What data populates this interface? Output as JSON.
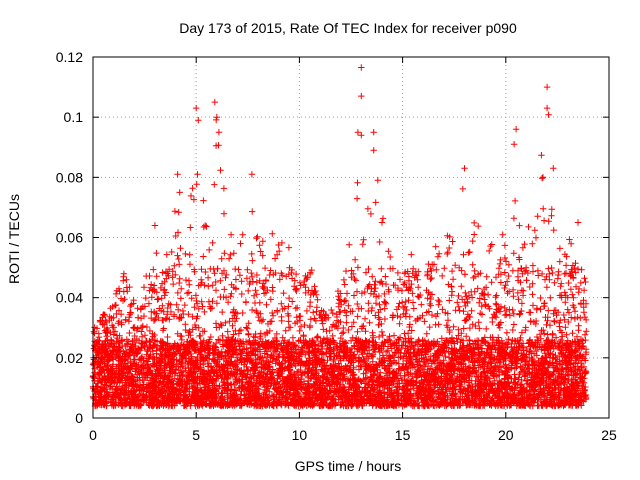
{
  "chart_data": {
    "type": "scatter",
    "title": "Day 173 of 2015, Rate Of TEC Index for receiver p090",
    "xlabel": "GPS time / hours",
    "ylabel": "ROTI / TECUs",
    "xlim": [
      0,
      25
    ],
    "ylim": [
      0,
      0.12
    ],
    "x_ticks": [
      0,
      5,
      10,
      15,
      20,
      25
    ],
    "y_ticks": [
      0,
      0.02,
      0.04,
      0.06,
      0.08,
      0.1,
      0.12
    ],
    "x_tick_labels": [
      "0",
      "5",
      "10",
      "15",
      "20",
      "25"
    ],
    "y_tick_labels": [
      "0",
      "0.02",
      "0.04",
      "0.06",
      "0.08",
      "0.1",
      "0.12"
    ],
    "grid": true,
    "marker": "+",
    "color": "#ff0000",
    "x_data_range": [
      0,
      23.9
    ],
    "envelope": [
      [
        0.0,
        0.03
      ],
      [
        0.5,
        0.035
      ],
      [
        1.0,
        0.04
      ],
      [
        1.5,
        0.048
      ],
      [
        2.0,
        0.04
      ],
      [
        2.5,
        0.045
      ],
      [
        3.0,
        0.062
      ],
      [
        3.5,
        0.05
      ],
      [
        4.0,
        0.08
      ],
      [
        4.5,
        0.06
      ],
      [
        5.0,
        0.103
      ],
      [
        5.5,
        0.068
      ],
      [
        6.0,
        0.105
      ],
      [
        6.5,
        0.065
      ],
      [
        7.0,
        0.06
      ],
      [
        7.5,
        0.08
      ],
      [
        8.0,
        0.06
      ],
      [
        8.5,
        0.067
      ],
      [
        9.0,
        0.062
      ],
      [
        9.5,
        0.062
      ],
      [
        10.0,
        0.05
      ],
      [
        10.5,
        0.052
      ],
      [
        11.0,
        0.038
      ],
      [
        11.5,
        0.035
      ],
      [
        12.0,
        0.045
      ],
      [
        12.5,
        0.068
      ],
      [
        13.0,
        0.116
      ],
      [
        13.5,
        0.095
      ],
      [
        14.0,
        0.079
      ],
      [
        14.5,
        0.05
      ],
      [
        15.0,
        0.048
      ],
      [
        15.5,
        0.056
      ],
      [
        16.0,
        0.045
      ],
      [
        16.5,
        0.06
      ],
      [
        17.0,
        0.062
      ],
      [
        17.5,
        0.06
      ],
      [
        18.0,
        0.083
      ],
      [
        18.5,
        0.066
      ],
      [
        19.0,
        0.064
      ],
      [
        19.5,
        0.055
      ],
      [
        20.0,
        0.064
      ],
      [
        20.5,
        0.095
      ],
      [
        21.0,
        0.065
      ],
      [
        21.5,
        0.07
      ],
      [
        22.0,
        0.11
      ],
      [
        22.5,
        0.06
      ],
      [
        23.0,
        0.06
      ],
      [
        23.5,
        0.065
      ],
      [
        23.9,
        0.045
      ]
    ],
    "peaks": [
      [
        13.0,
        0.1165
      ],
      [
        13.0,
        0.107
      ],
      [
        13.0,
        0.094
      ],
      [
        13.6,
        0.095
      ],
      [
        13.6,
        0.089
      ],
      [
        13.8,
        0.079
      ],
      [
        14.0,
        0.065
      ],
      [
        5.0,
        0.103
      ],
      [
        5.1,
        0.099
      ],
      [
        5.9,
        0.105
      ],
      [
        6.0,
        0.1
      ],
      [
        6.1,
        0.095
      ],
      [
        22.0,
        0.11
      ],
      [
        22.0,
        0.103
      ],
      [
        20.5,
        0.096
      ],
      [
        20.4,
        0.091
      ],
      [
        4.1,
        0.081
      ],
      [
        4.2,
        0.075
      ],
      [
        7.7,
        0.081
      ],
      [
        18.0,
        0.083
      ],
      [
        21.8,
        0.08
      ],
      [
        22.3,
        0.083
      ],
      [
        23.5,
        0.065
      ],
      [
        3.0,
        0.064
      ]
    ]
  }
}
